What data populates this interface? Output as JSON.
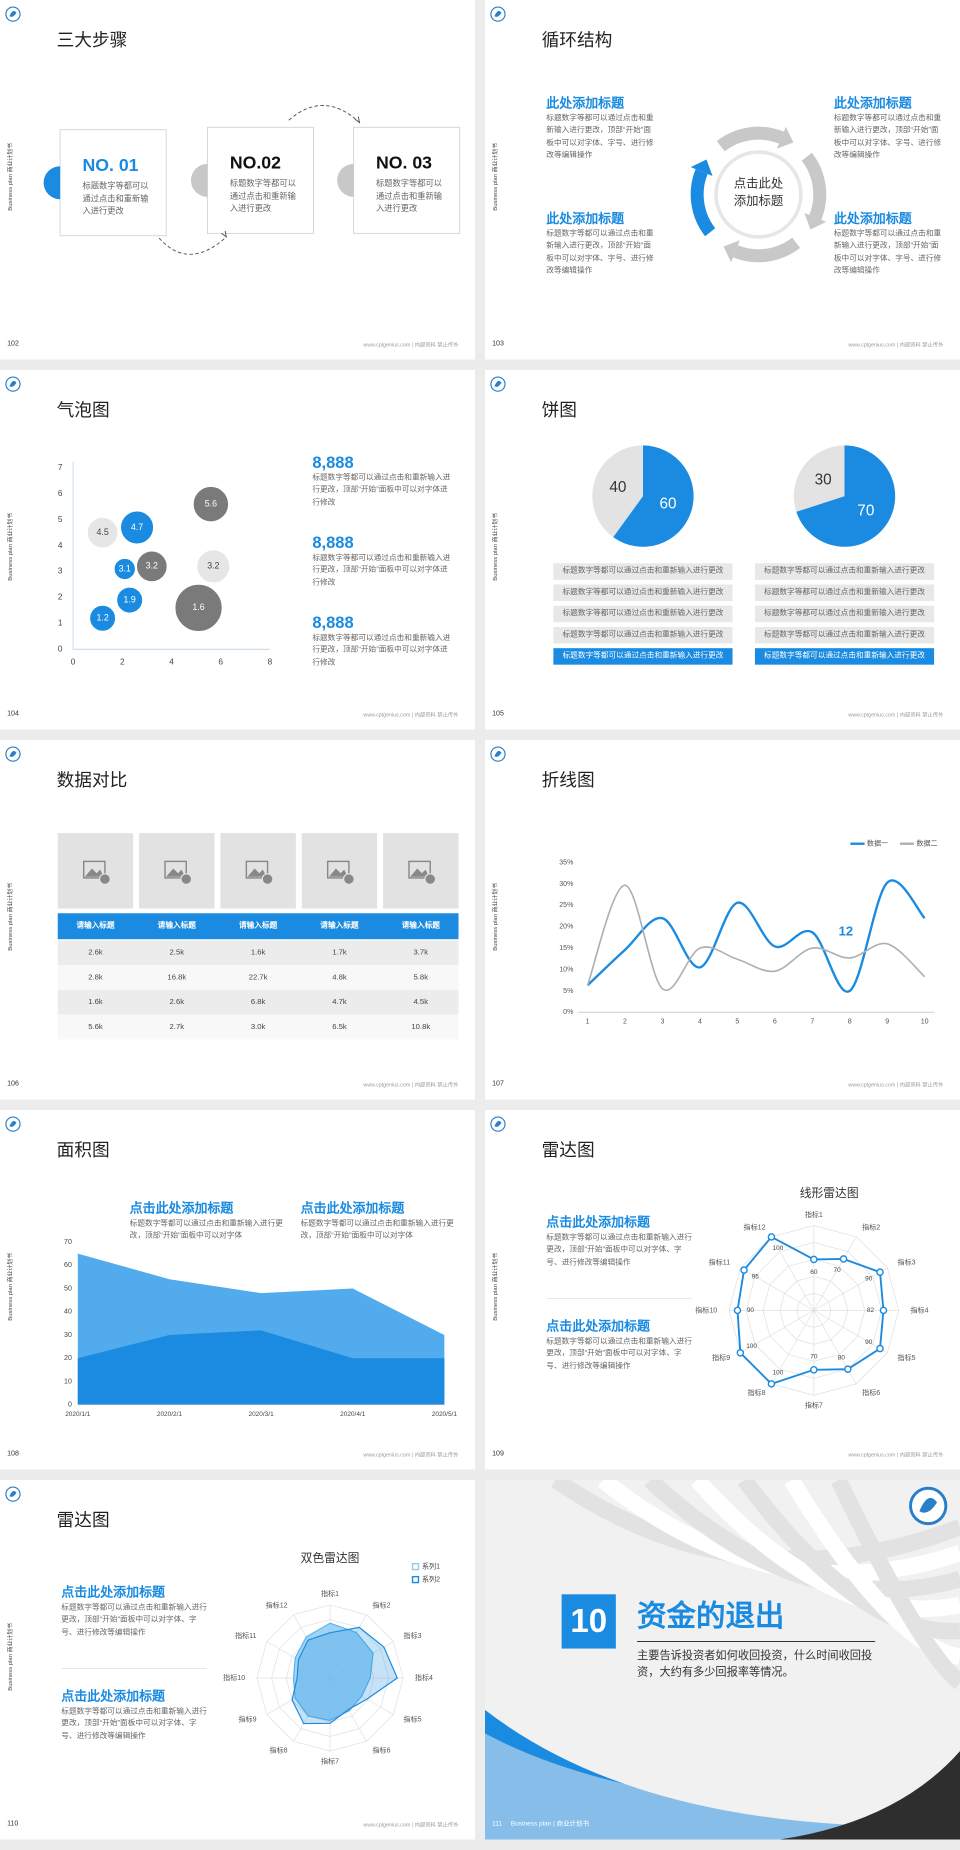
{
  "common": {
    "side_label": "Business plan 商业计划书",
    "footer": "www.cptgenius.com | 内部资料 禁止传外"
  },
  "slides": [
    {
      "page": "102",
      "title": "三大步骤",
      "steps": [
        {
          "label": "NO. 01",
          "text": "标题数字等都可以通过点击和重新输入进行更改"
        },
        {
          "label": "NO.02",
          "text": "标题数字等都可以通过点击和重新输入进行更改"
        },
        {
          "label": "NO. 03",
          "text": "标题数字等都可以通过点击和重新输入进行更改"
        }
      ]
    },
    {
      "page": "103",
      "title": "循环结构",
      "center": "点击此处添加标题",
      "items": [
        {
          "heading": "此处添加标题",
          "text": "标题数字等都可以通过点击和重新输入进行更改，顶部“开始”面板中可以对字体、字号、进行修改等编辑操作"
        },
        {
          "heading": "此处添加标题",
          "text": "标题数字等都可以通过点击和重新输入进行更改，顶部“开始”面板中可以对字体、字号、进行修改等编辑操作"
        },
        {
          "heading": "此处添加标题",
          "text": "标题数字等都可以通过点击和重新输入进行更改，顶部“开始”面板中可以对字体、字号、进行修改等编辑操作"
        },
        {
          "heading": "此处添加标题",
          "text": "标题数字等都可以通过点击和重新输入进行更改，顶部“开始”面板中可以对字体、字号、进行修改等编辑操作"
        }
      ]
    },
    {
      "page": "104",
      "title": "气泡图",
      "chart": {
        "type": "bubble",
        "xlim": [
          0,
          8
        ],
        "xticks": [
          0,
          2,
          4,
          6,
          8
        ],
        "ylim": [
          0,
          7
        ],
        "yticks": [
          0,
          1,
          2,
          3,
          4,
          5,
          6,
          7
        ],
        "series": [
          {
            "color": "#1a8be0",
            "x": [
              1.2,
              2.3,
              2.1,
              2.6
            ],
            "y": [
              1.2,
              1.9,
              3.1,
              4.7
            ],
            "size": [
              11,
              11,
              9,
              14
            ]
          },
          {
            "color": "#e6e6e6",
            "x": [
              1.2,
              5.7
            ],
            "y": [
              4.5,
              3.2
            ],
            "size": [
              13,
              14
            ]
          },
          {
            "color": "#7a7a7a",
            "x": [
              3.2,
              5.6,
              5.1
            ],
            "y": [
              3.2,
              5.6,
              1.6
            ],
            "size": [
              13,
              15,
              20
            ]
          }
        ]
      },
      "stats": [
        {
          "value": "8,888",
          "text": "标题数字等都可以通过点击和重新输入进行更改，顶部“开始”面板中可以对字体进行修改"
        },
        {
          "value": "8,888",
          "text": "标题数字等都可以通过点击和重新输入进行更改，顶部“开始”面板中可以对字体进行修改"
        },
        {
          "value": "8,888",
          "text": "标题数字等都可以通过点击和重新输入进行更改，顶部“开始”面板中可以对字体进行修改"
        }
      ]
    },
    {
      "page": "105",
      "title": "饼图",
      "charts": [
        {
          "type": "pie",
          "values": [
            60,
            40
          ],
          "colors": [
            "#1a8be0",
            "#e3e3e3"
          ],
          "rows": [
            "标题数字等都可以通过点击和重新输入进行更改",
            "标题数字等都可以通过点击和重新输入进行更改",
            "标题数字等都可以通过点击和重新输入进行更改",
            "标题数字等都可以通过点击和重新输入进行更改",
            "标题数字等都可以通过点击和重新输入进行更改"
          ]
        },
        {
          "type": "pie",
          "values": [
            70,
            30
          ],
          "colors": [
            "#1a8be0",
            "#e3e3e3"
          ],
          "rows": [
            "标题数字等都可以通过点击和重新输入进行更改",
            "标题数字等都可以通过点击和重新输入进行更改",
            "标题数字等都可以通过点击和重新输入进行更改",
            "标题数字等都可以通过点击和重新输入进行更改",
            "标题数字等都可以通过点击和重新输入进行更改"
          ]
        }
      ]
    },
    {
      "page": "106",
      "title": "数据对比",
      "table": {
        "header": [
          "请输入标题",
          "请输入标题",
          "请输入标题",
          "请输入标题",
          "请输入标题"
        ],
        "rows": [
          [
            "2.6k",
            "2.5k",
            "1.6k",
            "1.7k",
            "3.7k"
          ],
          [
            "2.8k",
            "16.8k",
            "22.7k",
            "4.8k",
            "5.8k"
          ],
          [
            "1.6k",
            "2.6k",
            "6.8k",
            "4.7k",
            "4.5k"
          ],
          [
            "5.6k",
            "2.7k",
            "3.0k",
            "6.5k",
            "10.8k"
          ]
        ]
      }
    },
    {
      "page": "107",
      "title": "折线图",
      "chart": {
        "type": "line",
        "x": [
          1,
          2,
          3,
          4,
          5,
          6,
          7,
          8,
          9,
          10
        ],
        "xlim": [
          1,
          10
        ],
        "xticks": [
          1,
          2,
          3,
          4,
          5,
          6,
          7,
          8,
          9,
          10
        ],
        "ylim": [
          0,
          35
        ],
        "yticks": [
          {
            "value": 0,
            "label": "0%"
          },
          {
            "value": 5,
            "label": "5%"
          },
          {
            "value": 10,
            "label": "10%"
          },
          {
            "value": 15,
            "label": "15%"
          },
          {
            "value": 20,
            "label": "20%"
          },
          {
            "value": 25,
            "label": "25%"
          },
          {
            "value": 30,
            "label": "30%"
          },
          {
            "value": 35,
            "label": "35%"
          }
        ],
        "legend": "top-right",
        "smooth": true,
        "annotation": "12",
        "series": [
          {
            "name": "数据一",
            "color": "#1a8be0",
            "values": [
              6.3,
              14.6,
              22,
              10.5,
              25.6,
              15.4,
              18.7,
              5,
              30.3,
              22
            ]
          },
          {
            "name": "数据二",
            "color": "#b0b0b0",
            "values": [
              6.3,
              29.7,
              5.5,
              15,
              12.4,
              9.6,
              15,
              12.7,
              16,
              8.3
            ]
          }
        ]
      }
    },
    {
      "page": "108",
      "title": "面积图",
      "headings": [
        {
          "heading": "点击此处添加标题",
          "text": "标题数字等都可以通过点击和重新输入进行更改，顶部“开始”面板中可以对字体"
        },
        {
          "heading": "点击此处添加标题",
          "text": "标题数字等都可以通过点击和重新输入进行更改，顶部“开始”面板中可以对字体"
        }
      ],
      "chart": {
        "type": "area",
        "categories": [
          "2020/1/1",
          "2020/2/1",
          "2020/3/1",
          "2020/4/1",
          "2020/5/1"
        ],
        "ylim": [
          0,
          70
        ],
        "yticks": [
          0,
          10,
          20,
          30,
          40,
          50,
          60,
          70
        ],
        "series": [
          {
            "color": "#52abec",
            "values": [
              65,
              54,
              48,
              50,
              30
            ]
          },
          {
            "color": "#1a8be0",
            "values": [
              20,
              30,
              32,
              20,
              20
            ]
          }
        ]
      }
    },
    {
      "page": "109",
      "title": "雷达图",
      "headings": [
        {
          "heading": "点击此处添加标题",
          "text": "标题数字等都可以通过点击和重新输入进行更改，顶部“开始”面板中可以对字体、字号、进行修改等编辑操作"
        },
        {
          "heading": "点击此处添加标题",
          "text": "标题数字等都可以通过点击和重新输入进行更改，顶部“开始”面板中可以对字体、字号、进行修改等编辑操作"
        }
      ],
      "chart": {
        "type": "radar",
        "title": "线形雷达图",
        "axes": [
          "指标1",
          "指标2",
          "指标3",
          "指标4",
          "指标5",
          "指标6",
          "指标7",
          "指标8",
          "指标9",
          "指标10",
          "指标11",
          "指标12"
        ],
        "rlim": [
          0,
          100
        ],
        "data_labels": true,
        "color": "#1a8be0",
        "values": [
          60,
          70,
          90,
          82,
          90,
          80,
          70,
          100,
          100,
          90,
          95,
          100
        ]
      }
    },
    {
      "page": "110",
      "title": "雷达图",
      "headings": [
        {
          "heading": "点击此处添加标题",
          "text": "标题数字等都可以通过点击和重新输入进行更改，顶部“开始”面板中可以对字体、字号、进行修改等编辑操作"
        },
        {
          "heading": "点击此处添加标题",
          "text": "标题数字等都可以通过点击和重新输入进行更改，顶部“开始”面板中可以对字体、字号、进行修改等编辑操作"
        }
      ],
      "chart": {
        "type": "radar",
        "title": "双色雷达图",
        "axes": [
          "指标1",
          "指标2",
          "指标3",
          "指标4",
          "指标5",
          "指标6",
          "指标7",
          "指标8",
          "指标9",
          "指标10",
          "指标11",
          "指标12"
        ],
        "rlim": [
          0,
          100
        ],
        "legend": "top-right",
        "series": [
          {
            "name": "系列1",
            "color": "#8fcdf3",
            "values": [
              75,
              72,
              68,
              55,
              50,
              52,
              58,
              60,
              55,
              50,
              55,
              65
            ]
          },
          {
            "name": "系列2",
            "color": "#1a8be0",
            "values": [
              62,
              80,
              85,
              92,
              58,
              50,
              62,
              72,
              60,
              45,
              50,
              60
            ]
          }
        ]
      }
    },
    {
      "page": "111",
      "number": "10",
      "title": "资金的退出",
      "text": "主要告诉投资者如何收回投资，什么时间收回投资，大约有多少回报率等情况。",
      "footer": "Business plan | 商业计划书"
    }
  ]
}
